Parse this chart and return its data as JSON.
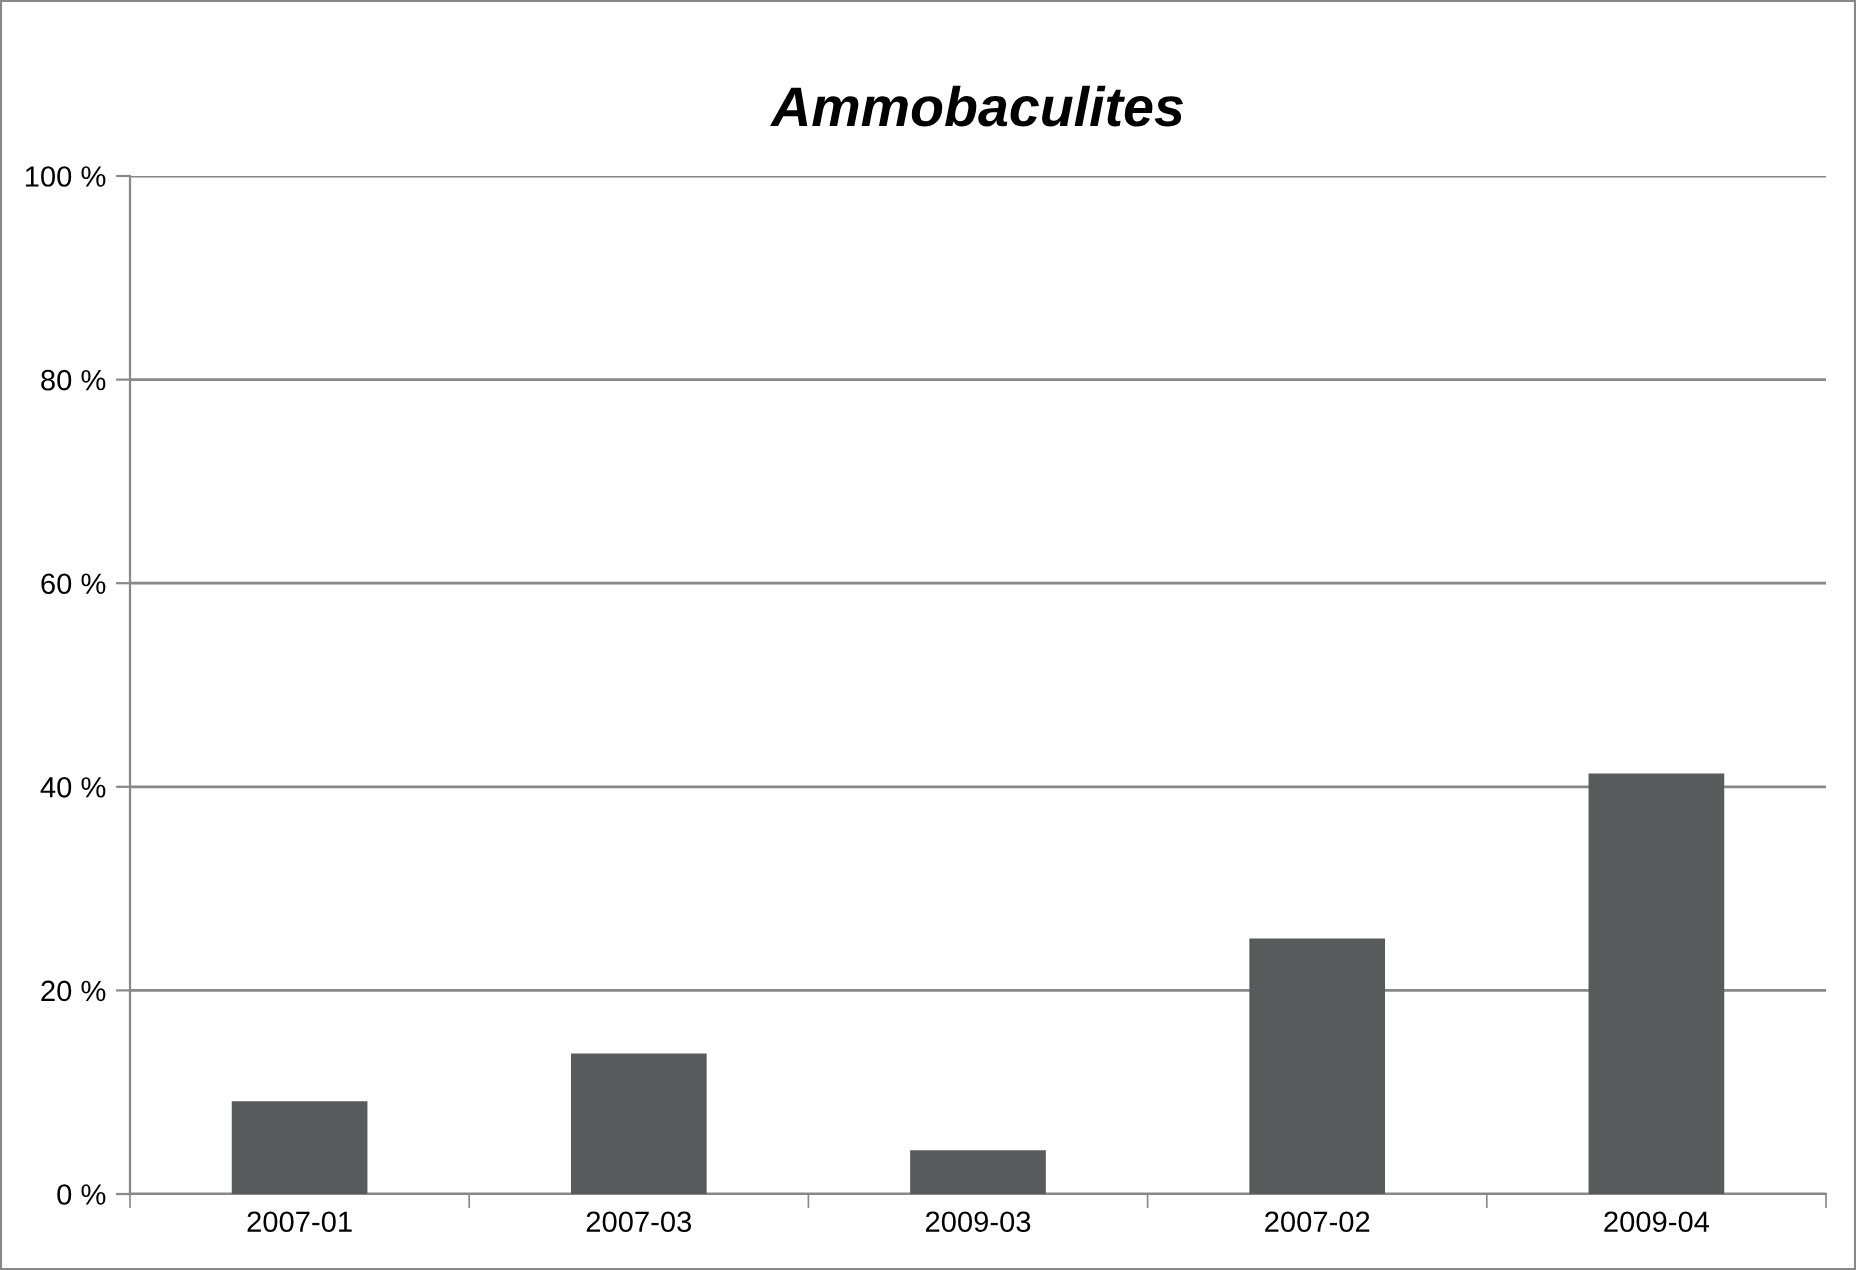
{
  "chart_data": {
    "type": "bar",
    "title": "Ammobaculites",
    "categories": [
      "2007-01",
      "2007-03",
      "2009-03",
      "2007-02",
      "2009-04"
    ],
    "values": [
      9.1,
      13.8,
      4.3,
      25.1,
      41.3
    ],
    "color": "#585b5c",
    "ylim": [
      0,
      100
    ],
    "yticks": [
      {
        "value": 0,
        "label": "0 %"
      },
      {
        "value": 20,
        "label": "20 %"
      },
      {
        "value": 40,
        "label": "40 %"
      },
      {
        "value": 60,
        "label": "60 %"
      },
      {
        "value": 80,
        "label": "80 %"
      },
      {
        "value": 100,
        "label": "100 %"
      }
    ],
    "grid": "y"
  }
}
